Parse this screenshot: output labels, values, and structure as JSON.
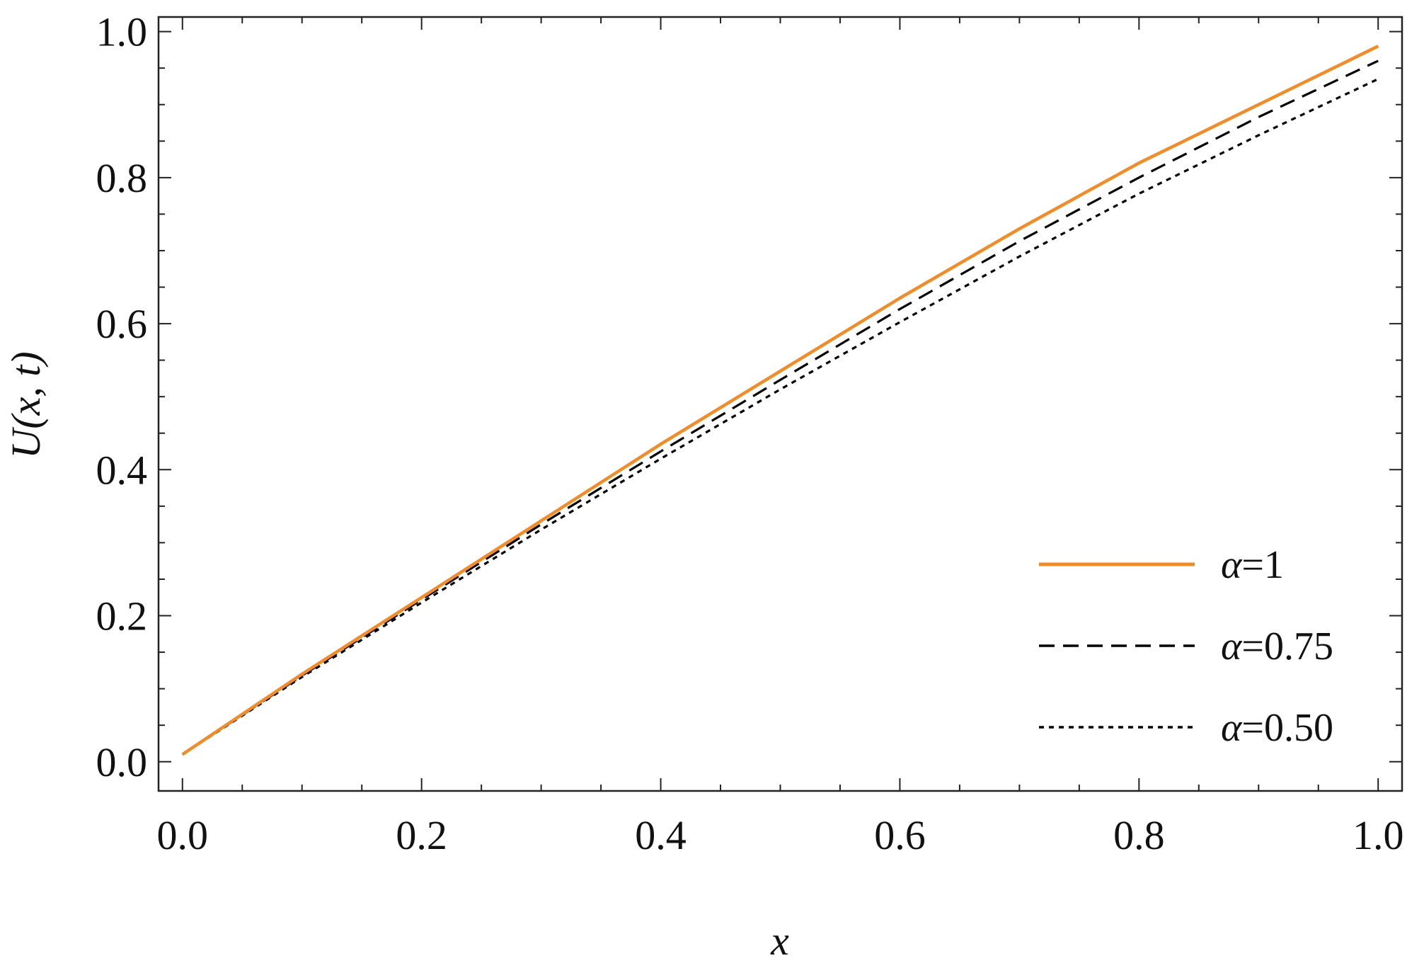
{
  "chart_data": {
    "type": "line",
    "title": "",
    "xlabel": "x",
    "ylabel": "U(x, t)",
    "xlim": [
      -0.02,
      1.02
    ],
    "ylim": [
      -0.04,
      1.02
    ],
    "x_ticks": [
      0.0,
      0.2,
      0.4,
      0.6,
      0.8,
      1.0
    ],
    "x_tick_labels": [
      "0.0",
      "0.2",
      "0.4",
      "0.6",
      "0.8",
      "1.0"
    ],
    "y_ticks": [
      0.0,
      0.2,
      0.4,
      0.6,
      0.8,
      1.0
    ],
    "y_tick_labels": [
      "0.0",
      "0.2",
      "0.4",
      "0.6",
      "0.8",
      "1.0"
    ],
    "grid": false,
    "legend_position": "bottom-right",
    "x": [
      0.0,
      0.1,
      0.2,
      0.3,
      0.4,
      0.5,
      0.6,
      0.7,
      0.8,
      0.9,
      1.0
    ],
    "series": [
      {
        "name": "α=1",
        "legend_symbol": "α",
        "legend_value": "=1",
        "color": "#F28C28",
        "style": "solid",
        "values": [
          0.01,
          0.12,
          0.225,
          0.33,
          0.435,
          0.535,
          0.635,
          0.73,
          0.82,
          0.9,
          0.98
        ]
      },
      {
        "name": "α=0.75",
        "legend_symbol": "α",
        "legend_value": "=0.75",
        "color": "#000000",
        "style": "dashed",
        "values": [
          0.01,
          0.118,
          0.222,
          0.325,
          0.425,
          0.523,
          0.62,
          0.713,
          0.8,
          0.883,
          0.96
        ]
      },
      {
        "name": "α=0.50",
        "legend_symbol": "α",
        "legend_value": "=0.50",
        "color": "#000000",
        "style": "dotted",
        "values": [
          0.01,
          0.116,
          0.218,
          0.318,
          0.415,
          0.51,
          0.602,
          0.692,
          0.778,
          0.858,
          0.935
        ]
      }
    ]
  }
}
